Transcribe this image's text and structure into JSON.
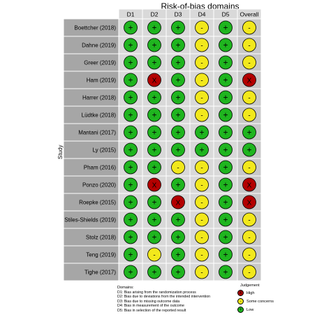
{
  "chart_data": {
    "type": "table",
    "title": "Risk-of-bias domains",
    "ylabel": "Study",
    "columns": [
      "D1",
      "D2",
      "D3",
      "D4",
      "D5",
      "Overall"
    ],
    "studies": [
      {
        "name": "Boettcher (2018)",
        "ratings": [
          "low",
          "low",
          "low",
          "some",
          "low",
          "some"
        ]
      },
      {
        "name": "Dahne (2019)",
        "ratings": [
          "low",
          "low",
          "low",
          "some",
          "low",
          "some"
        ]
      },
      {
        "name": "Greer (2019)",
        "ratings": [
          "low",
          "low",
          "low",
          "some",
          "low",
          "some"
        ]
      },
      {
        "name": "Ham (2019)",
        "ratings": [
          "low",
          "high",
          "low",
          "some",
          "low",
          "high"
        ]
      },
      {
        "name": "Harrer (2018)",
        "ratings": [
          "low",
          "low",
          "low",
          "some",
          "low",
          "some"
        ]
      },
      {
        "name": "Lüdtke (2018)",
        "ratings": [
          "low",
          "low",
          "low",
          "some",
          "low",
          "some"
        ]
      },
      {
        "name": "Mantani (2017)",
        "ratings": [
          "low",
          "low",
          "low",
          "low",
          "low",
          "low"
        ]
      },
      {
        "name": "Ly (2015)",
        "ratings": [
          "low",
          "low",
          "low",
          "low",
          "low",
          "low"
        ]
      },
      {
        "name": "Pham (2016)",
        "ratings": [
          "low",
          "low",
          "some",
          "some",
          "low",
          "some"
        ]
      },
      {
        "name": "Ponzo (2020)",
        "ratings": [
          "low",
          "high",
          "low",
          "some",
          "low",
          "high"
        ]
      },
      {
        "name": "Roepke (2015)",
        "ratings": [
          "low",
          "low",
          "high",
          "some",
          "low",
          "high"
        ]
      },
      {
        "name": "Stiles-Shields (2019)",
        "ratings": [
          "low",
          "low",
          "low",
          "some",
          "low",
          "some"
        ]
      },
      {
        "name": "Stolz (2018)",
        "ratings": [
          "low",
          "low",
          "low",
          "some",
          "low",
          "some"
        ]
      },
      {
        "name": "Teng (2019)",
        "ratings": [
          "low",
          "some",
          "low",
          "some",
          "low",
          "some"
        ]
      },
      {
        "name": "Tighe (2017)",
        "ratings": [
          "low",
          "low",
          "low",
          "some",
          "low",
          "some"
        ]
      }
    ],
    "symbols": {
      "low": "+",
      "some": "-",
      "high": "X"
    },
    "colors": {
      "low": "#1fb51f",
      "some": "#f2e81c",
      "high": "#b30000",
      "name_cell": "#a6a6a6",
      "overall_col": "#c8c8c8",
      "body": "#d9d9d9"
    },
    "domains_heading": "Domains:",
    "domains": [
      "D1: Bias arising from the randomization process",
      "D2: Bias due to deviations from the intended intervention",
      "D3: Bias due to missing outcome data",
      "D4: Bias in measurement of the outcome",
      "D5: Bias in selection of the reported result"
    ],
    "judgement_heading": "Judgement",
    "judgement_items": [
      {
        "key": "high",
        "label": "High"
      },
      {
        "key": "some",
        "label": "Some concerns"
      },
      {
        "key": "low",
        "label": "Low"
      }
    ]
  }
}
